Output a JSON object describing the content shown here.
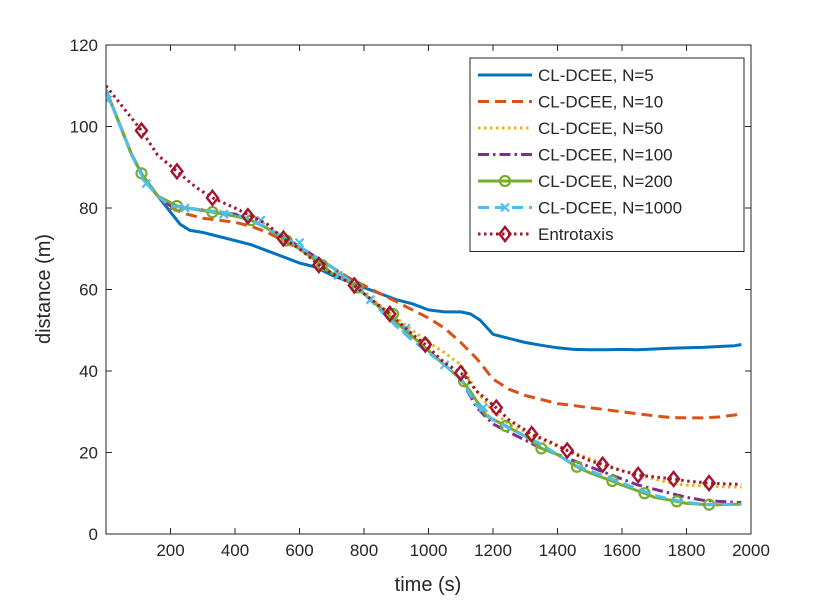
{
  "chart_data": {
    "type": "line",
    "title": "",
    "xlabel": "time (s)",
    "ylabel": "distance (m)",
    "xlim": [
      0,
      2000
    ],
    "ylim": [
      0,
      120
    ],
    "xticks": [
      200,
      400,
      600,
      800,
      1000,
      1200,
      1400,
      1600,
      1800,
      2000
    ],
    "yticks": [
      0,
      20,
      40,
      60,
      80,
      100,
      120
    ],
    "grid": false,
    "legend_position": "top-right",
    "series": [
      {
        "name": "CL-DCEE, N=5",
        "color": "#0072BD",
        "line_style": "solid",
        "marker": "none",
        "x": [
          0,
          40,
          80,
          120,
          160,
          200,
          230,
          260,
          300,
          350,
          400,
          450,
          500,
          550,
          600,
          650,
          700,
          750,
          800,
          850,
          900,
          950,
          1000,
          1050,
          1100,
          1130,
          1160,
          1200,
          1250,
          1300,
          1350,
          1400,
          1450,
          1500,
          1550,
          1600,
          1650,
          1700,
          1750,
          1800,
          1850,
          1900,
          1950,
          1970
        ],
        "y": [
          109,
          101,
          93,
          87,
          83,
          79,
          76,
          74.5,
          74,
          73,
          72,
          71,
          69.5,
          68,
          66.5,
          65.5,
          63.5,
          62,
          60.5,
          59,
          57.5,
          56.5,
          55,
          54.5,
          54.5,
          54,
          52.5,
          49,
          48,
          47,
          46.3,
          45.7,
          45.3,
          45.2,
          45.2,
          45.3,
          45.2,
          45.4,
          45.6,
          45.7,
          45.8,
          46,
          46.2,
          46.5
        ]
      },
      {
        "name": "CL-DCEE, N=10",
        "color": "#D95319",
        "line_style": "dashed",
        "marker": "none",
        "x": [
          0,
          40,
          80,
          120,
          160,
          200,
          250,
          300,
          350,
          400,
          450,
          500,
          550,
          600,
          650,
          700,
          750,
          800,
          850,
          900,
          950,
          1000,
          1050,
          1100,
          1150,
          1200,
          1250,
          1300,
          1350,
          1400,
          1450,
          1500,
          1550,
          1600,
          1650,
          1700,
          1750,
          1800,
          1850,
          1900,
          1950,
          1970
        ],
        "y": [
          109,
          101,
          93,
          87,
          83,
          80,
          78.5,
          77.5,
          77,
          76.5,
          75.5,
          74,
          72,
          70,
          68,
          65.5,
          63,
          61,
          59,
          57,
          55,
          53,
          50.5,
          47,
          43,
          38,
          35.5,
          34,
          33,
          32,
          31.5,
          31,
          30.5,
          30,
          29.5,
          29,
          28.6,
          28.5,
          28.5,
          28.7,
          29.2,
          29.5
        ]
      },
      {
        "name": "CL-DCEE, N=50",
        "color": "#EDB120",
        "line_style": "dotted",
        "marker": "none",
        "x": [
          0,
          40,
          80,
          120,
          160,
          200,
          250,
          300,
          350,
          400,
          450,
          500,
          550,
          600,
          650,
          700,
          750,
          800,
          850,
          900,
          950,
          1000,
          1050,
          1100,
          1150,
          1200,
          1250,
          1300,
          1350,
          1400,
          1450,
          1500,
          1550,
          1600,
          1650,
          1700,
          1750,
          1800,
          1850,
          1900,
          1950,
          1970
        ],
        "y": [
          109,
          101,
          93,
          87,
          83,
          80.5,
          80,
          79.5,
          79,
          78.5,
          77,
          75,
          73,
          70.5,
          68,
          65.5,
          62.5,
          59.5,
          56,
          53,
          50,
          47,
          44.5,
          41.5,
          35,
          30,
          27,
          25,
          23,
          21.5,
          20,
          18.5,
          17,
          15.5,
          14.5,
          13.5,
          12.5,
          12,
          11.8,
          11.6,
          11.5,
          11.5
        ]
      },
      {
        "name": "CL-DCEE, N=100",
        "color": "#7E2F8E",
        "line_style": "dashdot",
        "marker": "none",
        "x": [
          0,
          40,
          80,
          120,
          160,
          200,
          250,
          300,
          350,
          400,
          450,
          500,
          550,
          600,
          650,
          700,
          750,
          800,
          850,
          900,
          950,
          1000,
          1050,
          1100,
          1150,
          1200,
          1250,
          1300,
          1350,
          1400,
          1450,
          1500,
          1550,
          1600,
          1650,
          1700,
          1750,
          1800,
          1850,
          1900,
          1950,
          1970
        ],
        "y": [
          109,
          101,
          93,
          87,
          83,
          80.5,
          80,
          79.5,
          79,
          78.5,
          77,
          75,
          73,
          70.5,
          68,
          65.5,
          62.5,
          59,
          55.5,
          52,
          48.5,
          45,
          41.5,
          38,
          31,
          27,
          25,
          23,
          21,
          19.5,
          18,
          16.5,
          15,
          13.5,
          12,
          11,
          10,
          9,
          8.3,
          8,
          7.8,
          7.7
        ]
      },
      {
        "name": "CL-DCEE, N=200",
        "color": "#77AC30",
        "line_style": "solid",
        "marker": "circle",
        "x": [
          0,
          40,
          80,
          110,
          160,
          220,
          250,
          330,
          400,
          450,
          500,
          560,
          600,
          670,
          700,
          750,
          800,
          850,
          900,
          950,
          1000,
          1050,
          1100,
          1130,
          1180,
          1240,
          1300,
          1350,
          1400,
          1460,
          1500,
          1570,
          1600,
          1670,
          1700,
          1770,
          1800,
          1870,
          1900,
          1950,
          1970
        ],
        "y": [
          109,
          101,
          93,
          88.5,
          83,
          80.5,
          80,
          79,
          78,
          77,
          75,
          72,
          70,
          66,
          64,
          62,
          59,
          55.5,
          52,
          48.5,
          45,
          41.5,
          38,
          35,
          29,
          26.5,
          24,
          21,
          19.5,
          16.5,
          15,
          13,
          12,
          10,
          9,
          8,
          7.5,
          7.2,
          7.2,
          7.3,
          7.3
        ],
        "marker_x": [
          110,
          220,
          330,
          450,
          560,
          670,
          780,
          890,
          990,
          1110,
          1240,
          1350,
          1460,
          1570,
          1670,
          1770,
          1870
        ],
        "marker_y": [
          88.5,
          80.5,
          79,
          77,
          72,
          66,
          60.5,
          54,
          46.5,
          37.5,
          26.5,
          21,
          16.5,
          13,
          10,
          8,
          7.2
        ]
      },
      {
        "name": "CL-DCEE, N=1000",
        "color": "#4DBEEE",
        "line_style": "dashed",
        "marker": "x",
        "x": [
          0,
          40,
          80,
          120,
          160,
          200,
          250,
          300,
          350,
          400,
          450,
          500,
          550,
          600,
          650,
          700,
          750,
          800,
          850,
          900,
          950,
          1000,
          1050,
          1100,
          1150,
          1200,
          1250,
          1300,
          1350,
          1400,
          1450,
          1500,
          1550,
          1600,
          1650,
          1700,
          1750,
          1800,
          1850,
          1900,
          1950,
          1970
        ],
        "y": [
          109,
          101,
          93,
          86.5,
          83,
          80.5,
          80,
          79.5,
          79,
          78.5,
          77,
          75,
          73,
          70.5,
          68,
          65.5,
          62.5,
          59,
          55,
          51,
          47.5,
          44.5,
          41.5,
          38,
          31.5,
          28,
          26,
          24,
          22,
          19.5,
          17,
          15.5,
          14,
          12.5,
          11,
          9.5,
          8.5,
          7.8,
          7.3,
          7.2,
          7.3,
          7.3
        ],
        "marker_x": [
          5,
          125,
          245,
          365,
          480,
          600,
          720,
          820,
          930,
          1050,
          1170
        ],
        "marker_y": [
          106.5,
          86,
          80,
          78.5,
          77,
          71.5,
          63.5,
          57.5,
          50.5,
          41.5,
          31
        ]
      },
      {
        "name": "Entrotaxis",
        "color": "#A2142F",
        "line_style": "dotted",
        "marker": "diamond",
        "x": [
          0,
          50,
          110,
          160,
          220,
          280,
          330,
          400,
          450,
          500,
          550,
          600,
          660,
          700,
          770,
          800,
          880,
          950,
          990,
          1050,
          1110,
          1150,
          1210,
          1250,
          1320,
          1380,
          1430,
          1500,
          1540,
          1600,
          1650,
          1700,
          1760,
          1800,
          1870,
          1920,
          1970
        ],
        "y": [
          110,
          105,
          99,
          93,
          89,
          85,
          82.5,
          80,
          78,
          76,
          72.5,
          70,
          66,
          64,
          61,
          59,
          54,
          49,
          46.5,
          42,
          39,
          35,
          31,
          28,
          24.5,
          22.5,
          20.5,
          18,
          17,
          15.5,
          14.5,
          14,
          13.5,
          13,
          12.5,
          12.3,
          12.2
        ],
        "marker_x": [
          110,
          220,
          330,
          440,
          550,
          660,
          770,
          880,
          990,
          1100,
          1210,
          1320,
          1430,
          1540,
          1650,
          1760,
          1870
        ],
        "marker_y": [
          99,
          89,
          82.5,
          78,
          72.5,
          66,
          61,
          54,
          46.5,
          39.5,
          31,
          24.5,
          20.5,
          17,
          14.5,
          13.5,
          12.5
        ]
      }
    ]
  }
}
